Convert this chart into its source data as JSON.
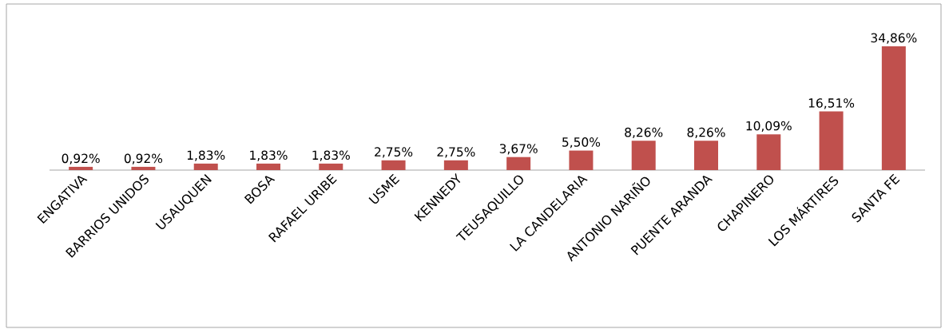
{
  "chart_data": {
    "type": "bar",
    "categories": [
      "ENGATIVA",
      "BARRIOS UNIDOS",
      "USAUQUEN",
      "BOSA",
      "RAFAEL URIBE",
      "USME",
      "KENNEDY",
      "TEUSAQUILLO",
      "LA CANDELARIA",
      "ANTONIO NARIÑO",
      "PUENTE ARANDA",
      "CHAPINERO",
      "LOS MÁRTIRES",
      "SANTA FE"
    ],
    "values": [
      0.92,
      0.92,
      1.83,
      1.83,
      1.83,
      2.75,
      2.75,
      3.67,
      5.5,
      8.26,
      8.26,
      10.09,
      16.51,
      34.86
    ],
    "value_labels": [
      "0,92%",
      "0,92%",
      "1,83%",
      "1,83%",
      "1,83%",
      "2,75%",
      "2,75%",
      "3,67%",
      "5,50%",
      "8,26%",
      "8,26%",
      "10,09%",
      "16,51%",
      "34,86%"
    ],
    "color": "#c0504d"
  }
}
